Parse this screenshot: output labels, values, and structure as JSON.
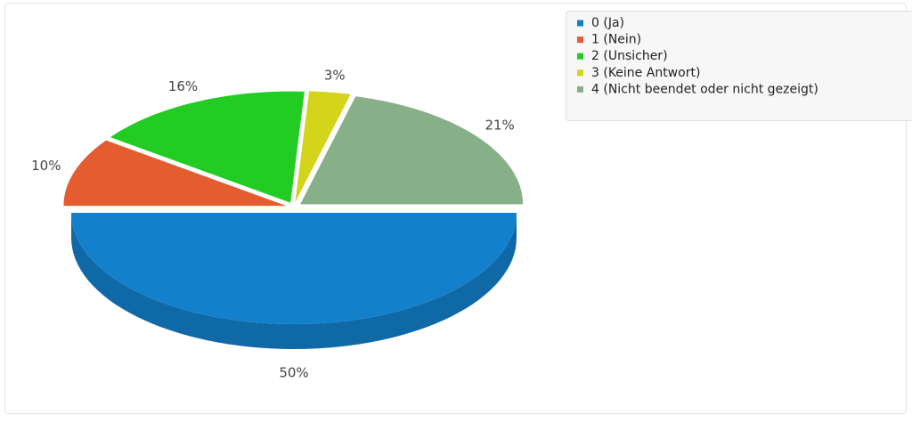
{
  "chart_data": {
    "type": "pie",
    "categories": [
      "0 (Ja)",
      "1 (Nein)",
      "2 (Unsicher)",
      "3 (Keine Antwort)",
      "4 (Nicht beendet oder nicht gezeigt)"
    ],
    "values": [
      50,
      10,
      16,
      3,
      21
    ],
    "value_labels": [
      "50%",
      "10%",
      "16%",
      "3%",
      "21%"
    ],
    "colors": [
      "#1380cc",
      "#e45c30",
      "#22cc22",
      "#d4d41a",
      "#88b088"
    ],
    "legend": "top-right"
  }
}
